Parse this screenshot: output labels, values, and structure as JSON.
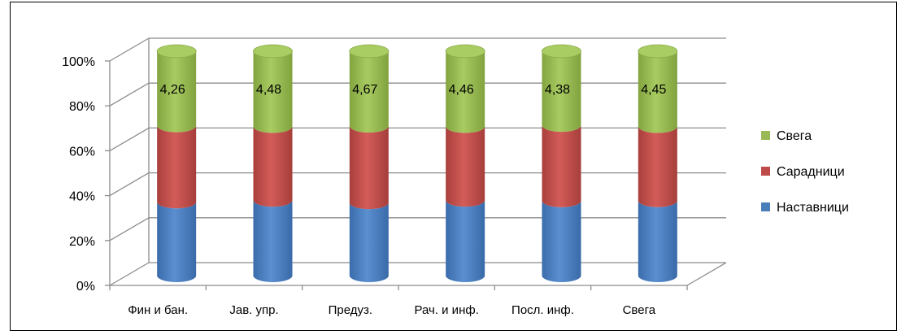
{
  "chart_data": {
    "type": "bar",
    "stacked": true,
    "percent_stacked": true,
    "three_d": true,
    "categories": [
      "Фин и бан.",
      "Јав. упр.",
      "Предуз.",
      "Рач. и инф.",
      "Посл. инф.",
      "Свега"
    ],
    "series": [
      {
        "name": "Наставници",
        "values": [
          4.22,
          4.5,
          4.56,
          4.48,
          4.43,
          4.44
        ],
        "color": "#4a7ebb"
      },
      {
        "name": "Сарадници",
        "values": [
          4.36,
          4.4,
          4.78,
          4.38,
          4.46,
          4.39
        ],
        "color": "#be4b48"
      },
      {
        "name": "Свега",
        "values": [
          4.26,
          4.48,
          4.67,
          4.46,
          4.38,
          4.45
        ],
        "color": "#98b954"
      }
    ],
    "data_labels": [
      "4,26",
      "4,48",
      "4,67",
      "4,46",
      "4,38",
      "4,45"
    ],
    "y_ticks": [
      "0%",
      "20%",
      "40%",
      "60%",
      "80%",
      "100%"
    ],
    "ylim": [
      0,
      100
    ],
    "grid": true,
    "legend_position": "right"
  }
}
